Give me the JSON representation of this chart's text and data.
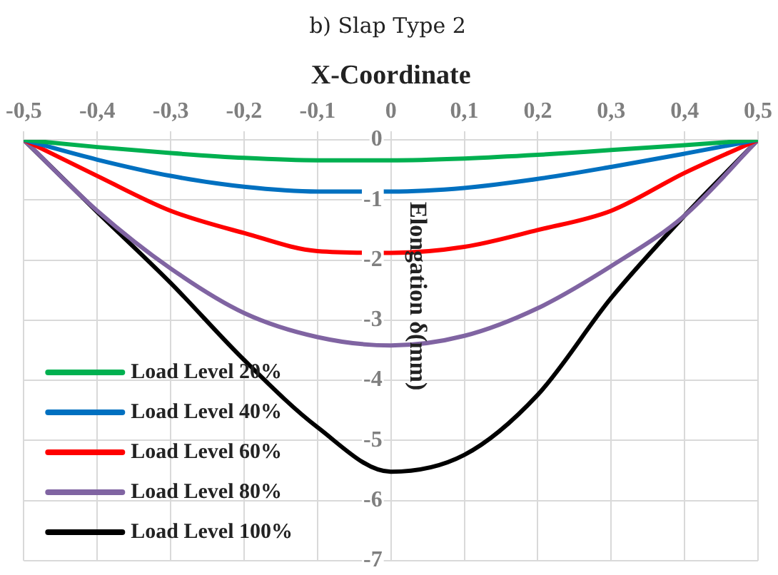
{
  "chart_data": {
    "type": "line",
    "title": "b) Slap Type 2",
    "xlabel": "X-Coordinate",
    "ylabel": "Elongation δ(mm)",
    "x": [
      -0.5,
      -0.4,
      -0.3,
      -0.2,
      -0.1,
      0,
      0.1,
      0.2,
      0.3,
      0.4,
      0.5
    ],
    "series": [
      {
        "name": "Load Level 20%",
        "color": "#00b050",
        "values": [
          0,
          -0.12,
          -0.22,
          -0.3,
          -0.34,
          -0.34,
          -0.31,
          -0.25,
          -0.17,
          -0.09,
          0
        ]
      },
      {
        "name": "Load Level 40%",
        "color": "#0070c0",
        "values": [
          0,
          -0.33,
          -0.6,
          -0.78,
          -0.86,
          -0.86,
          -0.8,
          -0.65,
          -0.45,
          -0.23,
          0
        ]
      },
      {
        "name": "Load Level 60%",
        "color": "#ff0000",
        "values": [
          0,
          -0.6,
          -1.18,
          -1.55,
          -1.85,
          -1.88,
          -1.78,
          -1.5,
          -1.18,
          -0.55,
          0
        ]
      },
      {
        "name": "Load Level 80%",
        "color": "#8064a2",
        "values": [
          0,
          -1.18,
          -2.14,
          -2.88,
          -3.28,
          -3.42,
          -3.26,
          -2.8,
          -2.1,
          -1.26,
          0
        ]
      },
      {
        "name": "Load Level 100%",
        "color": "#000000",
        "values": [
          0,
          -1.2,
          -2.38,
          -3.66,
          -4.78,
          -5.52,
          -5.24,
          -4.24,
          -2.63,
          -1.26,
          0
        ]
      }
    ],
    "xlim": [
      -0.5,
      0.5
    ],
    "xticks": [
      {
        "value": -0.5,
        "label": "-0,5"
      },
      {
        "value": -0.4,
        "label": "-0,4"
      },
      {
        "value": -0.3,
        "label": "-0,3"
      },
      {
        "value": -0.2,
        "label": "-0,2"
      },
      {
        "value": -0.1,
        "label": "-0,1"
      },
      0,
      {
        "value": 0.1,
        "label": "0,1"
      },
      {
        "value": 0.2,
        "label": "0,2"
      },
      {
        "value": 0.3,
        "label": "0,3"
      },
      {
        "value": 0.4,
        "label": "0,4"
      },
      {
        "value": 0.5,
        "label": "0,5"
      }
    ],
    "ylim": [
      -7,
      0
    ],
    "yticks": [
      0,
      -1,
      -2,
      -3,
      -4,
      -5,
      -6,
      -7
    ],
    "grid": true,
    "legend": "bottom left",
    "marker": "none",
    "line_style": "solid"
  }
}
